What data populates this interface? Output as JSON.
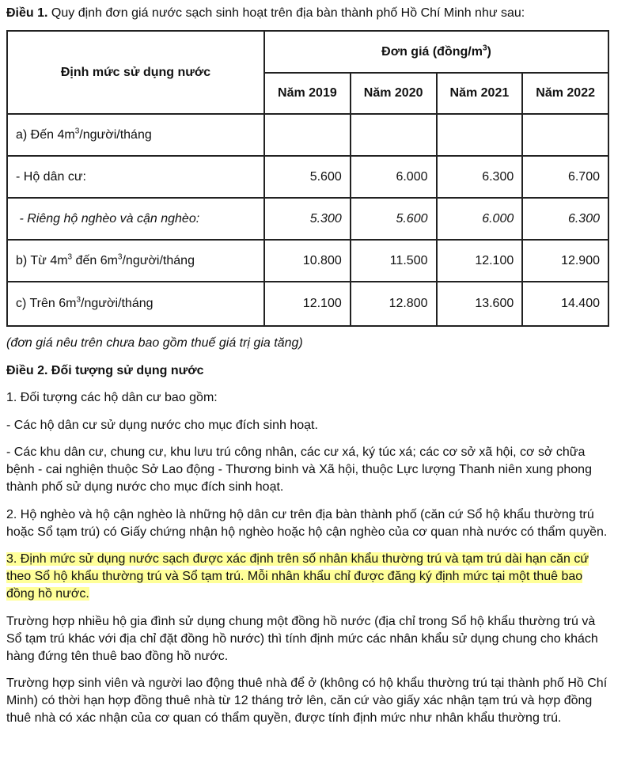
{
  "title": {
    "bold": "Điều 1.",
    "text": " Quy định đơn giá nước sạch sinh hoạt trên địa bàn thành phố Hồ Chí Minh như sau:"
  },
  "table": {
    "col1": "Định mức sử dụng nước",
    "price_header": "Đơn giá (đồng/m",
    "price_header_sup": "3",
    "price_header_end": ")",
    "years": [
      "Năm 2019",
      "Năm 2020",
      "Năm 2021",
      "Năm 2022"
    ],
    "rows": [
      {
        "label": "a) Đến 4m",
        "sup": "3",
        "rest": "/người/tháng",
        "values": [
          "",
          "",
          "",
          ""
        ]
      },
      {
        "label": "- Hộ dân cư:",
        "sup": "",
        "rest": "",
        "values": [
          "5.600",
          "6.000",
          "6.300",
          "6.700"
        ]
      },
      {
        "label": " - Riêng hộ nghèo và cận nghèo:",
        "sup": "",
        "rest": "",
        "values": [
          "5.300",
          "5.600",
          "6.000",
          "6.300"
        ]
      },
      {
        "label": "b) Từ 4m",
        "sup": "3",
        "mid": " đến 6m",
        "sup2": "3",
        "rest": "/người/tháng",
        "values": [
          "10.800",
          "11.500",
          "12.100",
          "12.900"
        ]
      },
      {
        "label": "c) Trên 6m",
        "sup": "3",
        "rest": "/người/tháng",
        "values": [
          "12.100",
          "12.800",
          "13.600",
          "14.400"
        ]
      }
    ]
  },
  "note": "(đơn giá nêu trên chưa bao gồm thuế giá trị gia tăng)",
  "dieu2": "Điều 2. Đối tượng sử dụng nước",
  "paragraphs": [
    "1. Đối tượng các hộ dân cư bao gồm:",
    "- Các hộ dân cư sử dụng nước cho mục đích sinh hoạt.",
    "- Các khu dân cư, chung cư, khu lưu trú công nhân, các cư xá, ký túc xá; các cơ sở xã hội, cơ sở chữa bệnh - cai nghiện thuộc Sở Lao động - Thương binh và Xã hội, thuộc Lực lượng Thanh niên xung phong thành phố sử dụng nước cho mục đích sinh hoạt.",
    "2. Hộ nghèo và hộ cận nghèo là những hộ dân cư trên địa bàn thành phố (căn cứ Sổ hộ khẩu thường trú hoặc Sổ tạm trú) có Giấy chứng nhận hộ nghèo hoặc hộ cận nghèo của cơ quan nhà nước có thẩm quyền.",
    "3. Định mức sử dụng nước sạch được xác định trên số nhân khẩu thường trú và tạm trú dài hạn căn cứ theo Sổ hộ khẩu thường trú và Sổ tạm trú. Mỗi nhân khẩu chỉ được đăng ký định mức tại một thuê bao đồng hồ nước.",
    "Trường hợp nhiều hộ gia đình sử dụng chung một đồng hồ nước (địa chỉ trong Sổ hộ khẩu thường trú và Sổ tạm trú khác với địa chỉ đặt đồng hồ nước) thì tính định mức các nhân khẩu sử dụng chung cho khách hàng đứng tên thuê bao đồng hồ nước.",
    "Trường hợp sinh viên và người lao động thuê nhà để ở (không có hộ khẩu thường trú tại thành phố Hồ Chí Minh) có thời hạn hợp đồng thuê nhà từ 12 tháng trở lên, căn cứ vào giấy xác nhận tạm trú và hợp đồng thuê nhà có xác nhận của cơ quan có thẩm quyền, được tính định mức như nhân khẩu thường trú."
  ],
  "highlight_color": "#ffff99"
}
